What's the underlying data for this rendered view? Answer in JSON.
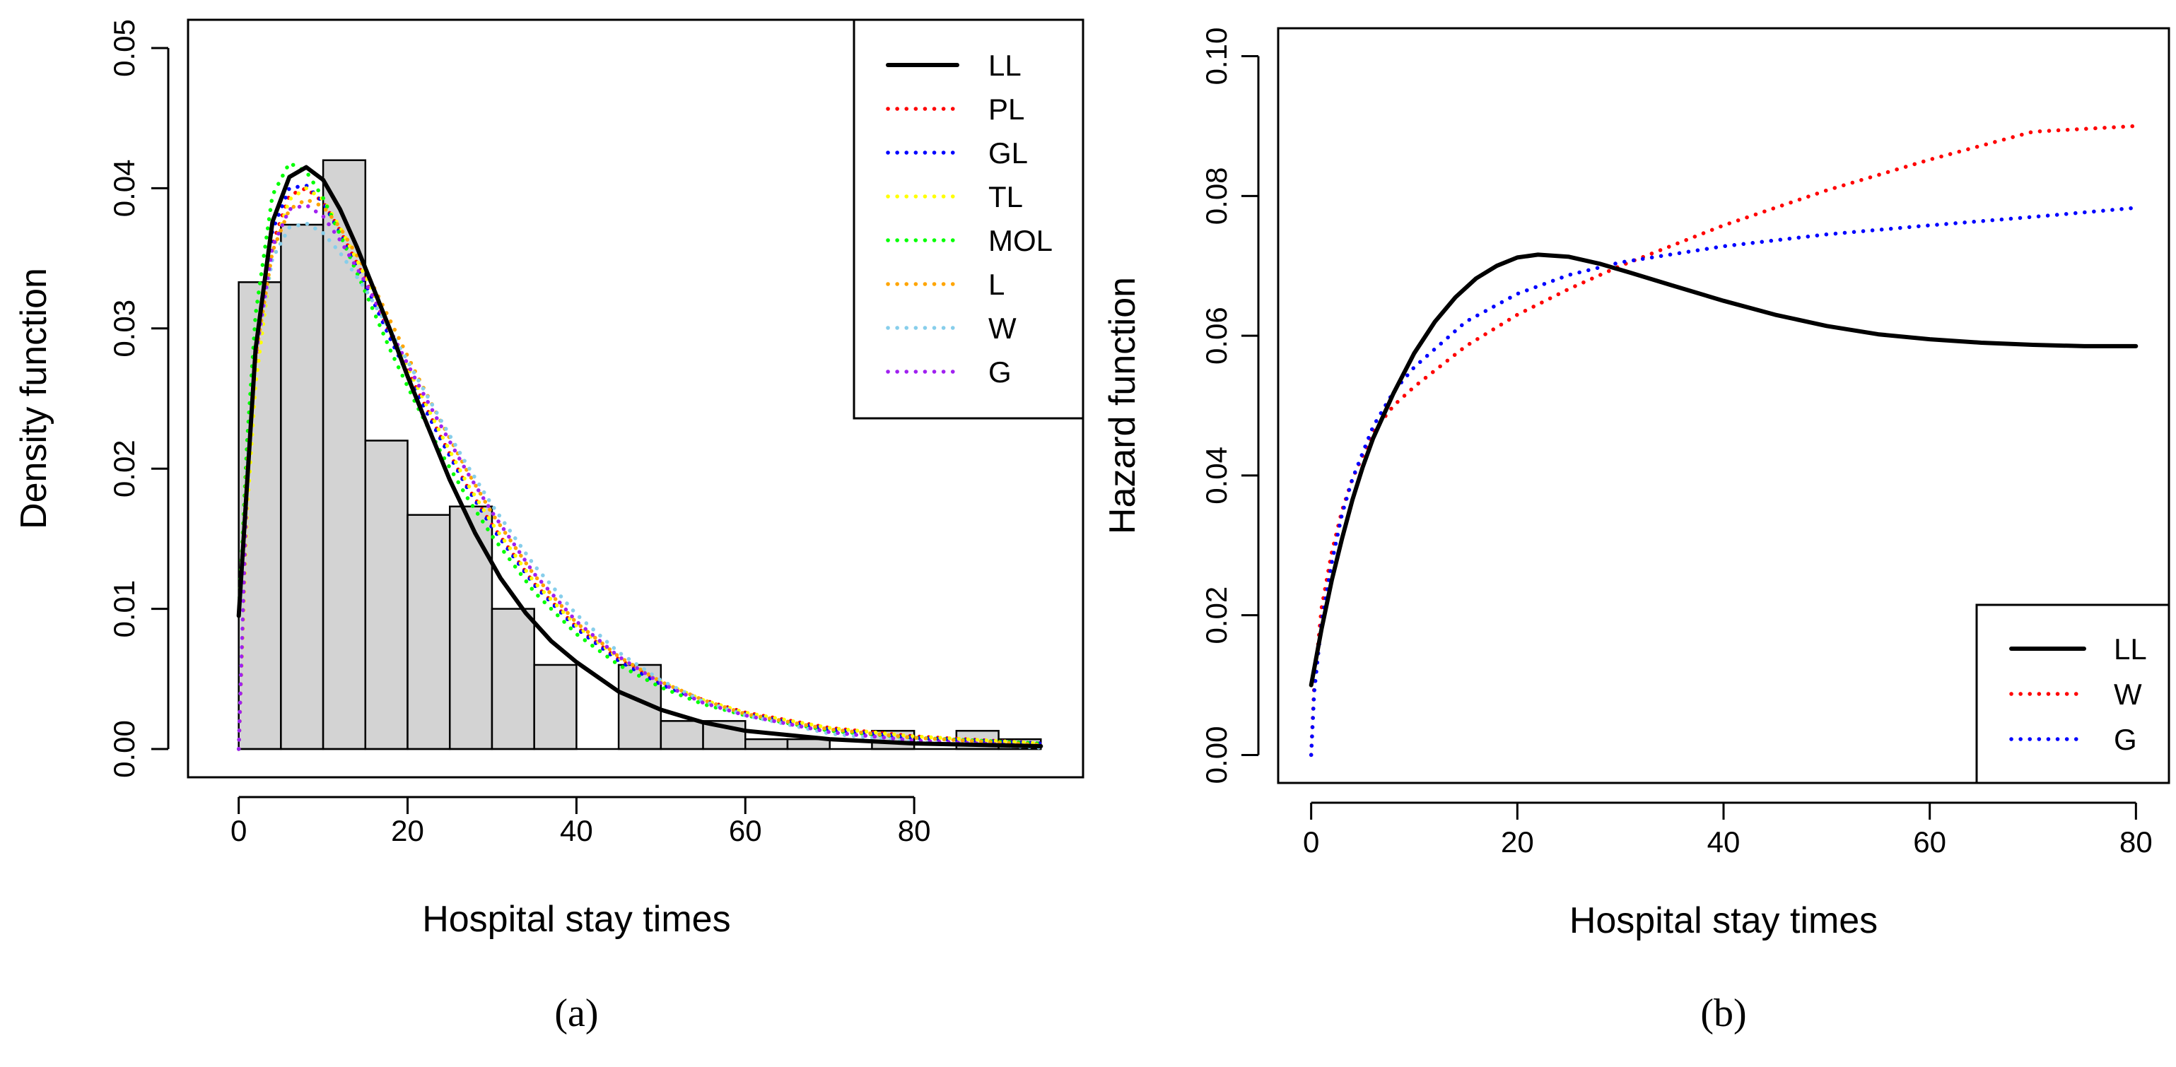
{
  "chart_data": [
    {
      "panel": "a",
      "type": "bar",
      "caption": "(a)",
      "xlabel": "Hospital stay times",
      "ylabel": "Density function",
      "xlim": [
        -6,
        100
      ],
      "ylim": [
        0,
        0.05
      ],
      "x_ticks": [
        0,
        20,
        40,
        60,
        80
      ],
      "y_ticks": [
        0.0,
        0.01,
        0.02,
        0.03,
        0.04,
        0.05
      ],
      "y_tick_labels": [
        "0.00",
        "0.01",
        "0.02",
        "0.03",
        "0.04",
        "0.05"
      ],
      "grid": false,
      "legend_position": "top-right",
      "histogram": {
        "bin_edges": [
          0,
          5,
          10,
          15,
          20,
          25,
          30,
          35,
          40,
          45,
          50,
          55,
          60,
          65,
          70,
          75,
          80,
          85,
          90,
          95
        ],
        "density": [
          0.0333,
          0.0374,
          0.042,
          0.022,
          0.0167,
          0.0173,
          0.01,
          0.006,
          0.0,
          0.006,
          0.002,
          0.002,
          0.0007,
          0.0007,
          0.0,
          0.0013,
          0.0,
          0.0013,
          0.0007
        ],
        "fill": "#d3d3d3"
      },
      "series": [
        {
          "name": "LL",
          "color": "#000000",
          "style": "solid",
          "x": [
            0,
            2,
            4,
            6,
            8,
            10,
            12,
            14,
            16,
            18,
            20,
            22,
            25,
            28,
            31,
            34,
            37,
            40,
            45,
            50,
            55,
            60,
            70,
            80,
            95
          ],
          "y": [
            0.0095,
            0.0285,
            0.0376,
            0.0408,
            0.0415,
            0.0406,
            0.0385,
            0.0358,
            0.0328,
            0.0298,
            0.0266,
            0.0236,
            0.0192,
            0.0154,
            0.0122,
            0.0097,
            0.0077,
            0.0062,
            0.0041,
            0.0028,
            0.0019,
            0.0013,
            0.0007,
            0.0004,
            0.0002
          ]
        },
        {
          "name": "PL",
          "color": "#ff0000",
          "style": "dotted",
          "x": [
            0,
            1,
            2,
            4,
            6,
            8,
            10,
            12,
            15,
            18,
            21,
            24,
            27,
            30,
            35,
            40,
            45,
            50,
            55,
            60,
            70,
            80,
            95
          ],
          "y": [
            0.0,
            0.018,
            0.027,
            0.036,
            0.0395,
            0.04,
            0.039,
            0.037,
            0.0335,
            0.0295,
            0.0258,
            0.0222,
            0.0188,
            0.016,
            0.0118,
            0.0087,
            0.0064,
            0.0047,
            0.0035,
            0.0026,
            0.0015,
            0.0009,
            0.0004
          ]
        },
        {
          "name": "GL",
          "color": "#0000ff",
          "style": "dotted",
          "x": [
            0,
            1,
            2,
            4,
            6,
            8,
            10,
            12,
            15,
            18,
            21,
            24,
            27,
            30,
            35,
            40,
            45,
            50,
            55,
            60,
            70,
            80,
            95
          ],
          "y": [
            0.0,
            0.019,
            0.028,
            0.037,
            0.04,
            0.0402,
            0.039,
            0.0368,
            0.0332,
            0.0292,
            0.0255,
            0.022,
            0.0187,
            0.0158,
            0.0117,
            0.0086,
            0.0063,
            0.0046,
            0.0034,
            0.0025,
            0.0014,
            0.0008,
            0.0004
          ]
        },
        {
          "name": "TL",
          "color": "#ffff00",
          "style": "dotted",
          "x": [
            0,
            1,
            2,
            4,
            6,
            8,
            10,
            12,
            15,
            18,
            21,
            24,
            27,
            30,
            35,
            40,
            45,
            50,
            55,
            60,
            70,
            80,
            95
          ],
          "y": [
            0.0,
            0.017,
            0.026,
            0.0355,
            0.0392,
            0.04,
            0.0392,
            0.0372,
            0.0337,
            0.0297,
            0.026,
            0.0224,
            0.019,
            0.0161,
            0.0119,
            0.0088,
            0.0065,
            0.0048,
            0.0035,
            0.0026,
            0.0015,
            0.0009,
            0.0004
          ]
        },
        {
          "name": "MOL",
          "color": "#00ff00",
          "style": "dotted",
          "x": [
            0,
            1,
            2,
            4,
            6,
            8,
            10,
            12,
            15,
            18,
            21,
            24,
            27,
            30,
            35,
            40,
            45,
            50,
            55,
            60,
            70,
            80,
            95
          ],
          "y": [
            0.0095,
            0.022,
            0.031,
            0.0395,
            0.0418,
            0.0412,
            0.0393,
            0.0367,
            0.0326,
            0.0284,
            0.0246,
            0.0211,
            0.018,
            0.0152,
            0.0112,
            0.0082,
            0.006,
            0.0044,
            0.0032,
            0.0024,
            0.0013,
            0.0008,
            0.0004
          ]
        },
        {
          "name": "L",
          "color": "#ffa500",
          "style": "dotted",
          "x": [
            0,
            1,
            2,
            4,
            6,
            8,
            10,
            12,
            15,
            18,
            21,
            24,
            27,
            30,
            35,
            40,
            45,
            50,
            55,
            60,
            70,
            80,
            95
          ],
          "y": [
            0.0095,
            0.02,
            0.028,
            0.0355,
            0.0385,
            0.0392,
            0.0387,
            0.0372,
            0.0342,
            0.0305,
            0.0268,
            0.0233,
            0.0199,
            0.0168,
            0.0124,
            0.009,
            0.0066,
            0.0048,
            0.0035,
            0.0025,
            0.0014,
            0.0008,
            0.0003
          ]
        },
        {
          "name": "W",
          "color": "#87ceeb",
          "style": "dotted",
          "x": [
            0,
            1,
            2,
            4,
            6,
            8,
            10,
            12,
            15,
            18,
            21,
            24,
            27,
            30,
            35,
            40,
            45,
            50,
            55,
            60,
            70,
            80,
            95
          ],
          "y": [
            0.0,
            0.02,
            0.028,
            0.035,
            0.0372,
            0.0375,
            0.0368,
            0.0354,
            0.0328,
            0.0298,
            0.0266,
            0.0234,
            0.0203,
            0.0174,
            0.0131,
            0.0096,
            0.0069,
            0.0049,
            0.0034,
            0.0024,
            0.0011,
            0.0005,
            0.0001
          ]
        },
        {
          "name": "G",
          "color": "#a020f0",
          "style": "dotted",
          "x": [
            0,
            1,
            2,
            4,
            6,
            8,
            10,
            12,
            15,
            18,
            21,
            24,
            27,
            30,
            35,
            40,
            45,
            50,
            55,
            60,
            70,
            80,
            95
          ],
          "y": [
            0.0,
            0.019,
            0.028,
            0.0358,
            0.0385,
            0.0388,
            0.038,
            0.0363,
            0.0333,
            0.0298,
            0.0263,
            0.023,
            0.0198,
            0.0169,
            0.0125,
            0.0091,
            0.0066,
            0.0047,
            0.0033,
            0.0024,
            0.0012,
            0.0006,
            0.0002
          ]
        }
      ]
    },
    {
      "panel": "b",
      "type": "line",
      "caption": "(b)",
      "xlabel": "Hospital stay times",
      "ylabel": "Hazard function",
      "xlim": [
        -3.2,
        83.2
      ],
      "ylim": [
        -0.004,
        0.104
      ],
      "x_ticks": [
        0,
        20,
        40,
        60,
        80
      ],
      "y_ticks": [
        0.0,
        0.02,
        0.04,
        0.06,
        0.08,
        0.1
      ],
      "y_tick_labels": [
        "0.00",
        "0.02",
        "0.04",
        "0.06",
        "0.08",
        "0.10"
      ],
      "grid": false,
      "legend_position": "bottom-right",
      "series": [
        {
          "name": "LL",
          "color": "#000000",
          "style": "solid",
          "x": [
            0,
            1,
            2,
            3,
            4,
            5,
            6,
            8,
            10,
            12,
            14,
            16,
            18,
            20,
            22,
            25,
            28,
            31,
            35,
            40,
            45,
            50,
            55,
            60,
            65,
            70,
            75,
            80
          ],
          "y": [
            0.01,
            0.018,
            0.025,
            0.031,
            0.0365,
            0.0412,
            0.0453,
            0.0518,
            0.0575,
            0.062,
            0.0655,
            0.0682,
            0.07,
            0.0712,
            0.0716,
            0.0713,
            0.0703,
            0.069,
            0.0672,
            0.065,
            0.063,
            0.0614,
            0.0602,
            0.0595,
            0.059,
            0.0587,
            0.0585,
            0.0585
          ]
        },
        {
          "name": "W",
          "color": "#ff0000",
          "style": "dotted",
          "x": [
            0,
            0.3,
            1,
            2,
            3,
            4,
            6,
            8,
            10,
            15,
            20,
            25,
            30,
            40,
            50,
            60,
            70,
            80
          ],
          "y": [
            0.0,
            0.01,
            0.021,
            0.029,
            0.035,
            0.0395,
            0.0462,
            0.05,
            0.0527,
            0.0585,
            0.063,
            0.0667,
            0.07,
            0.0758,
            0.0808,
            0.0852,
            0.0892,
            0.09
          ]
        },
        {
          "name": "G",
          "color": "#0000ff",
          "style": "dotted",
          "x": [
            0,
            0.3,
            1,
            2,
            3,
            4,
            6,
            8,
            10,
            15,
            20,
            25,
            30,
            40,
            50,
            60,
            70,
            80
          ],
          "y": [
            0.0,
            0.009,
            0.019,
            0.0275,
            0.0345,
            0.0395,
            0.047,
            0.052,
            0.0555,
            0.062,
            0.066,
            0.0687,
            0.0705,
            0.0728,
            0.0745,
            0.0758,
            0.077,
            0.0783
          ]
        }
      ]
    }
  ]
}
